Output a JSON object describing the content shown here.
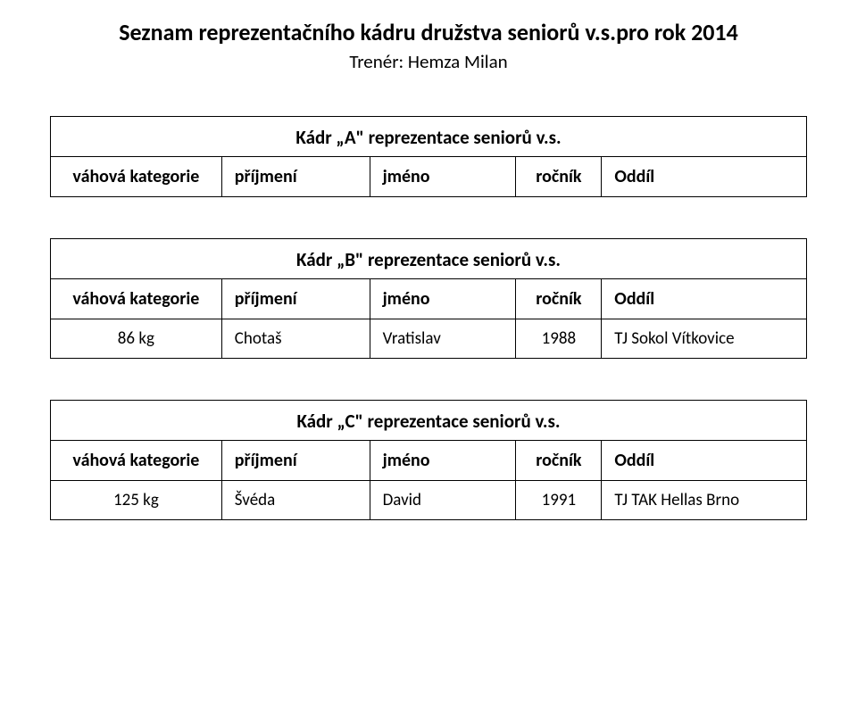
{
  "title": "Seznam reprezentačního kádru družstva seniorů v.s.pro rok 2014",
  "subtitle": "Trenér: Hemza Milan",
  "columnHeaders": {
    "category": "váhová kategorie",
    "surname": "příjmení",
    "name": "jméno",
    "year": "ročník",
    "club": "Oddíl"
  },
  "columnWidths": {
    "category": 192,
    "surname": 166,
    "name": 164,
    "year": 96,
    "club": 230
  },
  "tables": {
    "A": {
      "caption": "Kádr „A\" reprezentace seniorů v.s.",
      "rows": []
    },
    "B": {
      "caption": "Kádr „B\" reprezentace seniorů v.s.",
      "rows": [
        {
          "category": "86 kg",
          "surname": "Chotaš",
          "name": "Vratislav",
          "year": "1988",
          "club": "TJ Sokol Vítkovice"
        }
      ]
    },
    "C": {
      "caption": "Kádr „C\" reprezentace seniorů v.s.",
      "rows": [
        {
          "category": "125 kg",
          "surname": "Švéda",
          "name": "David",
          "year": "1991",
          "club": "TJ TAK Hellas Brno"
        }
      ]
    }
  },
  "style": {
    "border_color": "#000000",
    "background_color": "#ffffff",
    "title_fontsize": 26,
    "subtitle_fontsize": 21,
    "caption_fontsize": 21,
    "header_fontsize": 20,
    "cell_fontsize": 19
  }
}
